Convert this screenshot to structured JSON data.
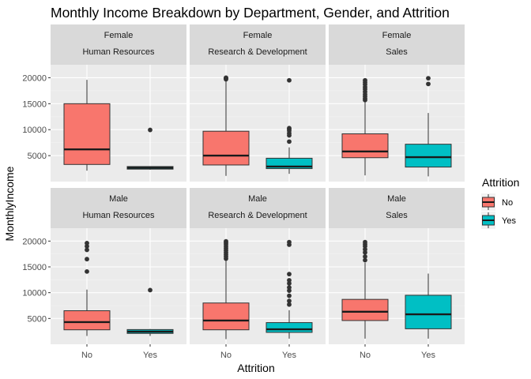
{
  "colors": {
    "panel_bg": "#EBEBEB",
    "strip_bg": "#D9D9D9",
    "grid_major": "#FFFFFF",
    "grid_minor": "#F3F3F3",
    "box_no": "#F8766D",
    "box_yes": "#00BFC4",
    "outline": "#333333",
    "median": "#1A1A1A",
    "tick": "#333333"
  },
  "chart_data": {
    "type": "boxplot",
    "title": "Monthly Income Breakdown by Department, Gender, and Attrition",
    "xlabel": "Attrition",
    "ylabel": "MonthlyIncome",
    "categories": [
      "No",
      "Yes"
    ],
    "y_ticks": [
      5000,
      10000,
      15000,
      20000
    ],
    "y_tick_labels": [
      "5000",
      "10000",
      "15000",
      "20000"
    ],
    "ylim": [
      0,
      22500
    ],
    "legend": {
      "title": "Attrition",
      "entries": [
        {
          "label": "No",
          "color": "#F8766D"
        },
        {
          "label": "Yes",
          "color": "#00BFC4"
        }
      ]
    },
    "facet_rows": [
      "Female",
      "Male"
    ],
    "facet_cols": [
      "Human Resources",
      "Research & Development",
      "Sales"
    ],
    "panels": [
      {
        "gender": "Female",
        "department": "Human Resources",
        "boxes": [
          {
            "category": "No",
            "whisker_low": 2100,
            "q1": 3300,
            "median": 6200,
            "q3": 15000,
            "whisker_high": 19600,
            "outliers": []
          },
          {
            "category": "Yes",
            "whisker_low": 2300,
            "q1": 2400,
            "median": 2650,
            "q3": 2900,
            "whisker_high": 2950,
            "outliers": [
              9950
            ]
          }
        ]
      },
      {
        "gender": "Female",
        "department": "Research & Development",
        "boxes": [
          {
            "category": "No",
            "whisker_low": 1100,
            "q1": 3200,
            "median": 5000,
            "q3": 9700,
            "whisker_high": 19400,
            "outliers": [
              19700,
              19850,
              19950,
              20000
            ]
          },
          {
            "category": "Yes",
            "whisker_low": 1500,
            "q1": 2500,
            "median": 2900,
            "q3": 4500,
            "whisker_high": 6600,
            "outliers": [
              7700,
              8900,
              9300,
              9800,
              10100,
              10300,
              19500
            ]
          }
        ]
      },
      {
        "gender": "Female",
        "department": "Sales",
        "boxes": [
          {
            "category": "No",
            "whisker_low": 1200,
            "q1": 4600,
            "median": 5800,
            "q3": 9200,
            "whisker_high": 15500,
            "outliers": [
              15700,
              16000,
              16400,
              16800,
              17300,
              17800,
              18200,
              18700,
              19100,
              19500
            ]
          },
          {
            "category": "Yes",
            "whisker_low": 1000,
            "q1": 2800,
            "median": 4700,
            "q3": 7200,
            "whisker_high": 13200,
            "outliers": [
              18800,
              19900
            ]
          }
        ]
      },
      {
        "gender": "Male",
        "department": "Human Resources",
        "boxes": [
          {
            "category": "No",
            "whisker_low": 1600,
            "q1": 2800,
            "median": 4300,
            "q3": 6500,
            "whisker_high": 10600,
            "outliers": [
              14100,
              16500,
              18300,
              19000,
              19600
            ]
          },
          {
            "category": "Yes",
            "whisker_low": 1600,
            "q1": 2100,
            "median": 2450,
            "q3": 2850,
            "whisker_high": 2950,
            "outliers": [
              10500
            ]
          }
        ]
      },
      {
        "gender": "Male",
        "department": "Research & Development",
        "boxes": [
          {
            "category": "No",
            "whisker_low": 1000,
            "q1": 2800,
            "median": 4600,
            "q3": 8000,
            "whisker_high": 16300,
            "outliers": [
              16600,
              17000,
              17400,
              17800,
              18200,
              18600,
              19000,
              19400,
              19700,
              19950
            ]
          },
          {
            "category": "Yes",
            "whisker_low": 1100,
            "q1": 2300,
            "median": 2900,
            "q3": 4200,
            "whisker_high": 6600,
            "outliers": [
              7700,
              8400,
              9400,
              10400,
              11000,
              11800,
              12400,
              13600,
              19300,
              19800
            ]
          }
        ]
      },
      {
        "gender": "Male",
        "department": "Sales",
        "boxes": [
          {
            "category": "No",
            "whisker_low": 1100,
            "q1": 4600,
            "median": 6300,
            "q3": 8700,
            "whisker_high": 15800,
            "outliers": [
              16300,
              17000,
              17800,
              18400,
              19000,
              19400,
              19800
            ]
          },
          {
            "category": "Yes",
            "whisker_low": 1100,
            "q1": 3000,
            "median": 5800,
            "q3": 9500,
            "whisker_high": 13700,
            "outliers": []
          }
        ]
      }
    ]
  }
}
